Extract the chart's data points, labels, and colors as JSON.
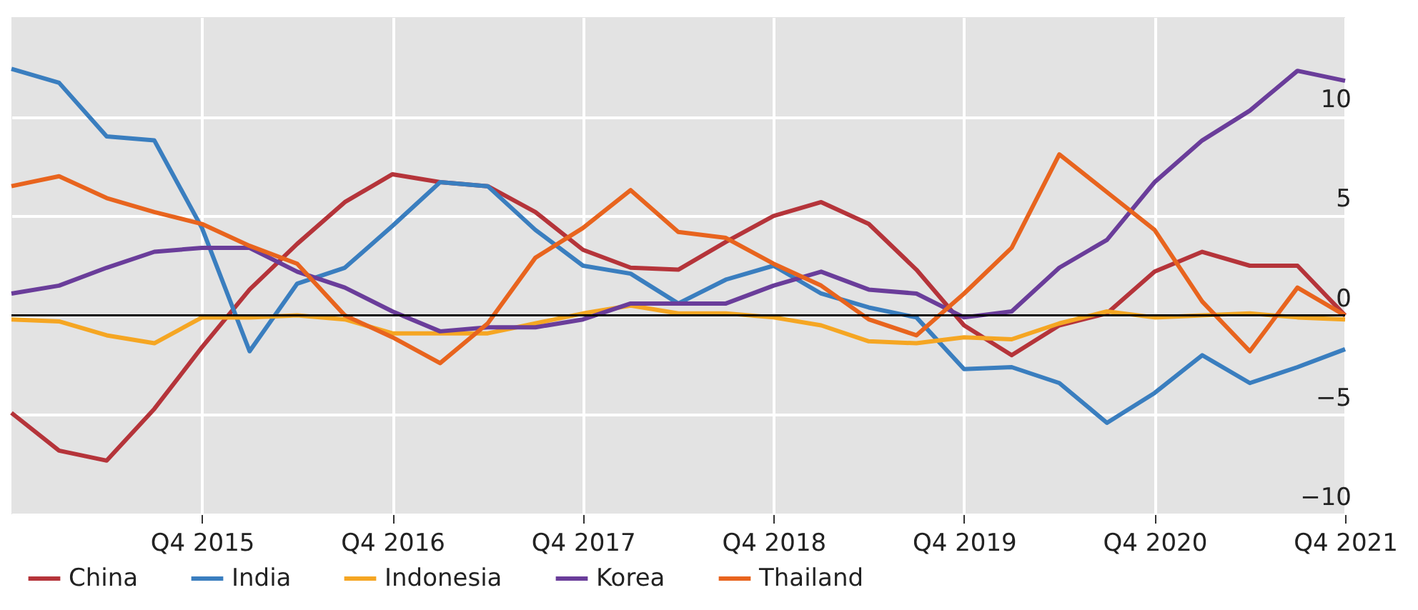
{
  "chart_data": {
    "type": "line",
    "categories": [
      null,
      null,
      null,
      null,
      "Q4 2015",
      null,
      null,
      null,
      "Q4 2016",
      null,
      null,
      null,
      "Q4 2017",
      null,
      null,
      null,
      "Q4 2018",
      null,
      null,
      null,
      "Q4 2019",
      null,
      null,
      null,
      "Q4 2020",
      null,
      null,
      null,
      "Q4 2021"
    ],
    "series": [
      {
        "name": "China",
        "color": "#b5343a",
        "values": [
          -4.9,
          -6.8,
          -7.3,
          -4.7,
          -1.6,
          1.3,
          3.6,
          5.7,
          7.1,
          6.7,
          6.5,
          5.2,
          3.3,
          2.4,
          2.3,
          3.7,
          5.0,
          5.7,
          4.6,
          2.3,
          -0.5,
          -2.0,
          -0.5,
          0.1,
          2.2,
          3.2,
          2.5,
          2.5,
          0
        ]
      },
      {
        "name": "India",
        "color": "#3a7ebf",
        "values": [
          12.4,
          11.7,
          9.0,
          8.8,
          4.4,
          -1.8,
          1.6,
          2.4,
          4.5,
          6.7,
          6.5,
          4.3,
          2.5,
          2.1,
          0.6,
          1.8,
          2.5,
          1.1,
          0.4,
          -0.1,
          -2.7,
          -2.6,
          -3.4,
          -5.4,
          -3.9,
          -2.0,
          -3.4,
          -2.6,
          -1.7
        ]
      },
      {
        "name": "Indonesia",
        "color": "#f5a623",
        "values": [
          -0.2,
          -0.3,
          -1.0,
          -1.4,
          -0.1,
          -0.1,
          0,
          -0.2,
          -0.9,
          -0.9,
          -0.9,
          -0.4,
          0.1,
          0.5,
          0.1,
          0.1,
          -0.1,
          -0.5,
          -1.3,
          -1.4,
          -1.1,
          -1.2,
          -0.4,
          0.2,
          -0.1,
          0,
          0.1,
          -0.1,
          -0.2
        ]
      },
      {
        "name": "Korea",
        "color": "#6a3d9a",
        "values": [
          1.1,
          1.5,
          2.4,
          3.2,
          3.4,
          3.4,
          2.2,
          1.4,
          0.2,
          -0.8,
          -0.6,
          -0.6,
          -0.2,
          0.6,
          0.6,
          0.6,
          1.5,
          2.2,
          1.3,
          1.1,
          -0.1,
          0.2,
          2.4,
          3.8,
          6.7,
          8.8,
          10.3,
          12.3,
          11.8
        ]
      },
      {
        "name": "Thailand",
        "color": "#e8641e",
        "values": [
          6.5,
          7.0,
          5.9,
          5.2,
          4.6,
          3.5,
          2.6,
          0,
          -1.1,
          -2.4,
          -0.4,
          2.9,
          4.4,
          6.3,
          4.2,
          3.9,
          2.6,
          1.5,
          -0.2,
          -1.0,
          1.1,
          3.4,
          8.1,
          6.2,
          4.3,
          0.7,
          -1.8,
          1.4,
          0
        ]
      }
    ],
    "ylim": [
      -10,
      15
    ],
    "yticks": [
      {
        "value": -10,
        "label": "−10"
      },
      {
        "value": -5,
        "label": "−5"
      },
      0,
      5,
      10
    ],
    "ref_lines": [
      {
        "axis": "y",
        "value": 0,
        "color": "#000000"
      }
    ],
    "grid": true,
    "legend": "bottom",
    "marker": "none",
    "line_style": "solid"
  }
}
